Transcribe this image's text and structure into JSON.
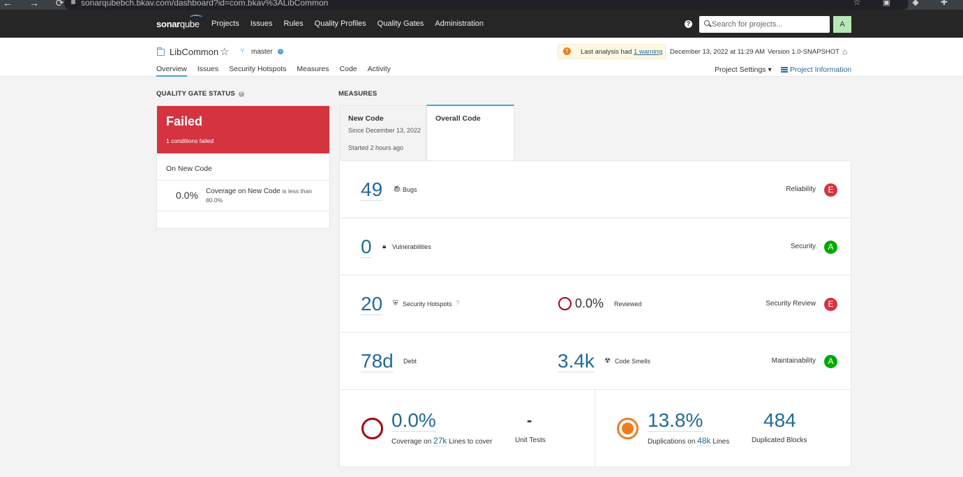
{
  "browser": {
    "url": "sonarqubebch.bkav.com/dashboard?id=com.bkav%3ALibCommon"
  },
  "nav": {
    "logo_main": "sonar",
    "logo_sub": "qube",
    "items": [
      "Projects",
      "Issues",
      "Rules",
      "Quality Profiles",
      "Quality Gates",
      "Administration"
    ],
    "search_placeholder": "Search for projects...",
    "avatar": "A"
  },
  "project": {
    "name": "LibCommon",
    "branch": "master",
    "warning_prefix": "Last analysis had",
    "warning_link": "1 warning",
    "analysis_date": "December 13, 2022 at 11:29 AM",
    "version": "Version 1.0-SNAPSHOT",
    "tabs": [
      "Overview",
      "Issues",
      "Security Hotspots",
      "Measures",
      "Code",
      "Activity"
    ],
    "settings": "Project Settings ▾",
    "info": "Project Information"
  },
  "quality_gate": {
    "title": "QUALITY GATE STATUS",
    "status": "Failed",
    "conditions": "1 conditions failed",
    "section": "On New Code",
    "cond_value": "0.0%",
    "cond_text": "Coverage on New Code",
    "cond_rest": "is less than 80.0%"
  },
  "measures": {
    "title": "MEASURES",
    "tab_new": "New Code",
    "tab_new_since": "Since December 13, 2022",
    "tab_new_started": "Started 2 hours ago",
    "tab_overall": "Overall Code",
    "bugs_value": "49",
    "bugs_label": "Bugs",
    "reliability_label": "Reliability",
    "reliability_rating": "E",
    "vuln_value": "0",
    "vuln_label": "Vulnerabilities",
    "security_label": "Security",
    "security_rating": "A",
    "hotspots_value": "20",
    "hotspots_label": "Security Hotspots",
    "reviewed_value": "0.0%",
    "reviewed_label": "Reviewed",
    "review_label": "Security Review",
    "review_rating": "E",
    "debt_value": "78d",
    "debt_label": "Debt",
    "smells_value": "3.4k",
    "smells_label": "Code Smells",
    "maint_label": "Maintainability",
    "maint_rating": "A",
    "coverage_value": "0.0%",
    "coverage_prefix": "Coverage on",
    "coverage_lines": "27k",
    "coverage_suffix": "Lines to cover",
    "unit_tests_value": "-",
    "unit_tests_label": "Unit Tests",
    "dup_value": "13.8%",
    "dup_prefix": "Duplications on",
    "dup_lines": "48k",
    "dup_suffix": "Lines",
    "dup_blocks_value": "484",
    "dup_blocks_label": "Duplicated Blocks"
  },
  "colors": {
    "failed": "#d4333f",
    "rating_a": "#00aa00",
    "rating_e": "#d4333f",
    "link": "#236a97",
    "accent": "#4b9fd5"
  }
}
